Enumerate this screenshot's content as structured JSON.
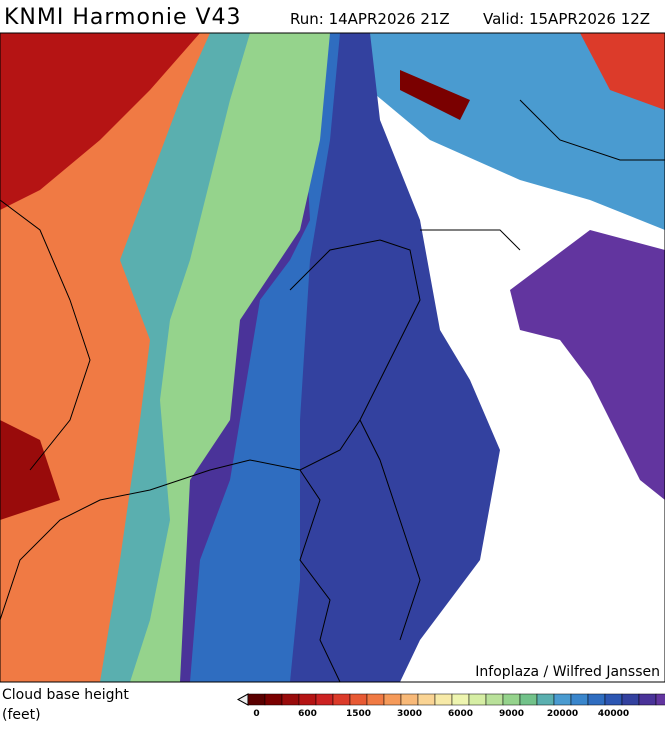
{
  "header": {
    "title": "KNMI Harmonie V43",
    "run": "Run: 14APR2026 21Z",
    "valid": "Valid: 15APR2026 12Z"
  },
  "map": {
    "credit": "Infoplaza / Wilfred Janssen"
  },
  "legend": {
    "title": "Cloud base height",
    "unit": "(feet)",
    "colors": [
      "#5a0000",
      "#7a0000",
      "#990b0b",
      "#b51414",
      "#cc2222",
      "#dc3b2a",
      "#e85a34",
      "#f07a44",
      "#f59a5a",
      "#f8b978",
      "#fad494",
      "#f7eaa8",
      "#eef5b0",
      "#d6eea4",
      "#b9e19a",
      "#95d38c",
      "#72c28a",
      "#5aafaf",
      "#4a9bd0",
      "#3a86cc",
      "#2f6dc0",
      "#2c56b2",
      "#33419f",
      "#4a3399",
      "#62359f"
    ],
    "labels": [
      "0",
      "600",
      "1500",
      "3000",
      "6000",
      "9000",
      "20000",
      "40000"
    ]
  }
}
